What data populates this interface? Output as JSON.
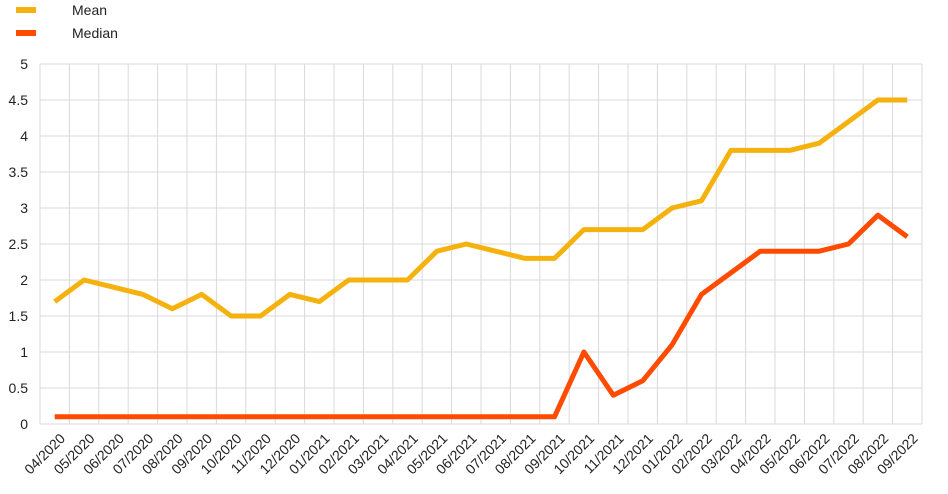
{
  "chart_data": {
    "type": "line",
    "categories": [
      "04/2020",
      "05/2020",
      "06/2020",
      "07/2020",
      "08/2020",
      "09/2020",
      "10/2020",
      "11/2020",
      "12/2020",
      "01/2021",
      "02/2021",
      "03/2021",
      "04/2021",
      "05/2021",
      "06/2021",
      "07/2021",
      "08/2021",
      "09/2021",
      "10/2021",
      "11/2021",
      "12/2021",
      "01/2022",
      "02/2022",
      "03/2022",
      "04/2022",
      "05/2022",
      "06/2022",
      "07/2022",
      "08/2022",
      "09/2022"
    ],
    "series": [
      {
        "name": "Mean",
        "color": "#f5b20e",
        "values": [
          1.7,
          2.0,
          1.9,
          1.8,
          1.6,
          1.8,
          1.5,
          1.5,
          1.8,
          1.7,
          2.0,
          2.0,
          2.0,
          2.4,
          2.5,
          2.4,
          2.3,
          2.3,
          2.7,
          2.7,
          2.7,
          3.0,
          3.1,
          3.8,
          3.8,
          3.8,
          3.9,
          4.2,
          4.5,
          4.5
        ]
      },
      {
        "name": "Median",
        "color": "#ff4b00",
        "values": [
          0.1,
          0.1,
          0.1,
          0.1,
          0.1,
          0.1,
          0.1,
          0.1,
          0.1,
          0.1,
          0.1,
          0.1,
          0.1,
          0.1,
          0.1,
          0.1,
          0.1,
          0.1,
          1.0,
          0.4,
          0.6,
          1.1,
          1.8,
          2.1,
          2.4,
          2.4,
          2.4,
          2.5,
          2.9,
          2.6
        ]
      }
    ],
    "y_ticks": [
      "0",
      "0.5",
      "1",
      "1.5",
      "2",
      "2.5",
      "3",
      "3.5",
      "4",
      "4.5",
      "5"
    ],
    "ylim": [
      0,
      5
    ],
    "grid": true,
    "legend_position": "top-left",
    "title": "",
    "xlabel": "",
    "ylabel": ""
  }
}
